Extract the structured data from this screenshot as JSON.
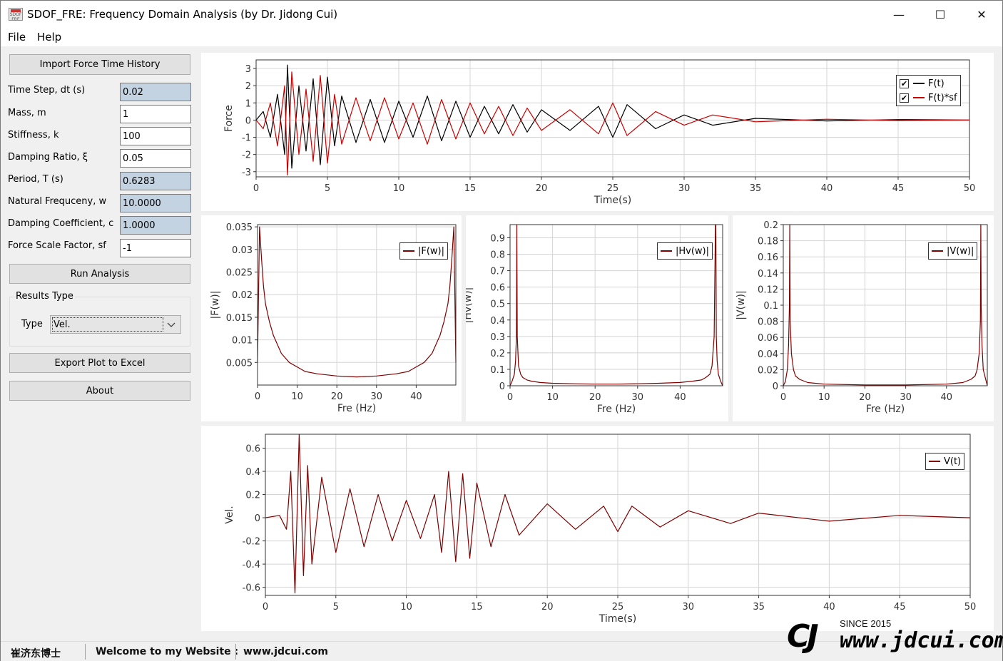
{
  "window": {
    "title": "SDOF_FRE: Frequency Domain Analysis (by Dr. Jidong Cui)",
    "icon_text": "SDOF FRE",
    "controls": {
      "minimize": "—",
      "maximize": "☐",
      "close": "✕"
    }
  },
  "menu": {
    "file": "File",
    "help": "Help"
  },
  "sidebar": {
    "import_button": "Import Force Time History",
    "fields": [
      {
        "label": "Time Step, dt (s)",
        "value": "0.02",
        "readonly": true
      },
      {
        "label": "Mass, m",
        "value": "1",
        "readonly": false
      },
      {
        "label": "Stiffness, k",
        "value": "100",
        "readonly": false
      },
      {
        "label": "Damping Ratio, ξ",
        "value": "0.05",
        "readonly": false
      },
      {
        "label": "Period, T (s)",
        "value": "0.6283",
        "readonly": true
      },
      {
        "label": "Natural Frequceny, w",
        "value": "10.0000",
        "readonly": true
      },
      {
        "label": "Damping Coefficient, c",
        "value": "1.0000",
        "readonly": true
      },
      {
        "label": "Force Scale Factor, sf",
        "value": "-1",
        "readonly": false
      }
    ],
    "run_button": "Run Analysis",
    "results_group_title": "Results Type",
    "type_label": "Type",
    "type_value": "Vel.",
    "export_button": "Export Plot to Excel",
    "about_button": "About"
  },
  "colors": {
    "series_dark": "#000000",
    "series_red": "#cc0000",
    "spectrum": "#800000",
    "panel_bg": "#ffffff",
    "readonly_field": "#c4d3e2"
  },
  "chart_data": [
    {
      "id": "force",
      "type": "line",
      "xlabel": "Time(s)",
      "ylabel": "Force",
      "xlim": [
        0,
        50
      ],
      "ylim": [
        -3.3,
        3.5
      ],
      "xticks": [
        0,
        5,
        10,
        15,
        20,
        25,
        30,
        35,
        40,
        45,
        50
      ],
      "yticks": [
        -3,
        -2,
        -1,
        0,
        1,
        2,
        3
      ],
      "grid": true,
      "legend_position": "top-right",
      "series": [
        {
          "name": "F(t)",
          "color": "#000000",
          "checked": true,
          "x": [
            0,
            0.5,
            1,
            1.5,
            2,
            2.2,
            2.5,
            3,
            3.5,
            4,
            4.5,
            5,
            5.5,
            6,
            7,
            8,
            9,
            10,
            11,
            12,
            13,
            14,
            15,
            16,
            17,
            18,
            19,
            20,
            22,
            24,
            25,
            26,
            28,
            30,
            32,
            35,
            40,
            45,
            50
          ],
          "y": [
            0,
            0.5,
            -1.0,
            1.5,
            -2.0,
            3.2,
            -2.8,
            2.0,
            -1.8,
            2.4,
            -2.6,
            2.5,
            -1.5,
            1.4,
            -1.3,
            1.2,
            -1.3,
            1.1,
            -1.0,
            1.4,
            -1.2,
            1.1,
            -1.0,
            0.8,
            -0.8,
            0.9,
            -0.7,
            0.6,
            -0.6,
            0.8,
            -1.0,
            0.9,
            -0.5,
            0.3,
            -0.3,
            0.1,
            -0.05,
            0.03,
            0
          ]
        },
        {
          "name": "F(t)*sf",
          "color": "#cc0000",
          "checked": true,
          "x": [
            0,
            0.5,
            1,
            1.5,
            2,
            2.2,
            2.5,
            3,
            3.5,
            4,
            4.5,
            5,
            5.5,
            6,
            7,
            8,
            9,
            10,
            11,
            12,
            13,
            14,
            15,
            16,
            17,
            18,
            19,
            20,
            22,
            24,
            25,
            26,
            28,
            30,
            32,
            35,
            40,
            45,
            50
          ],
          "y": [
            0,
            -0.5,
            1.0,
            -1.5,
            2.0,
            -3.2,
            2.8,
            -2.0,
            1.8,
            -2.4,
            2.6,
            -2.5,
            1.5,
            -1.4,
            1.3,
            -1.2,
            1.3,
            -1.1,
            1.0,
            -1.4,
            1.2,
            -1.1,
            1.0,
            -0.8,
            0.8,
            -0.9,
            0.7,
            -0.6,
            0.6,
            -0.8,
            1.0,
            -0.9,
            0.5,
            -0.3,
            0.3,
            -0.1,
            0.05,
            -0.03,
            0
          ]
        }
      ]
    },
    {
      "id": "fw",
      "type": "line",
      "xlabel": "Fre (Hz)",
      "ylabel": "|F(w)|",
      "xlim": [
        0,
        50
      ],
      "ylim": [
        0,
        0.0355
      ],
      "xticks": [
        0,
        10,
        20,
        30,
        40
      ],
      "yticks": [
        0.005,
        0.01,
        0.015,
        0.02,
        0.025,
        0.03,
        0.035
      ],
      "ytick_labels": [
        "0.005",
        "0.01",
        "0.015",
        "0.02",
        "0.025",
        "0.03",
        "0.035"
      ],
      "grid": true,
      "legend_position": "top-right",
      "series": [
        {
          "name": "|F(w)|",
          "color": "#800000",
          "x": [
            0,
            0.5,
            1,
            1.5,
            2,
            3,
            4,
            5,
            6,
            8,
            10,
            12,
            15,
            20,
            25,
            30,
            35,
            38,
            40,
            42,
            44,
            45,
            46,
            47,
            48,
            48.5,
            49,
            49.5,
            50
          ],
          "y": [
            0.005,
            0.035,
            0.028,
            0.022,
            0.018,
            0.014,
            0.011,
            0.009,
            0.007,
            0.005,
            0.004,
            0.003,
            0.0025,
            0.002,
            0.0018,
            0.002,
            0.0025,
            0.003,
            0.004,
            0.005,
            0.007,
            0.009,
            0.011,
            0.014,
            0.018,
            0.022,
            0.028,
            0.035,
            0.005
          ]
        }
      ]
    },
    {
      "id": "hvw",
      "type": "line",
      "xlabel": "Fre (Hz)",
      "ylabel": "|Hv(w)|",
      "xlim": [
        0,
        50
      ],
      "ylim": [
        0,
        0.98
      ],
      "xticks": [
        0,
        10,
        20,
        30,
        40
      ],
      "yticks": [
        0,
        0.1,
        0.2,
        0.3,
        0.4,
        0.5,
        0.6,
        0.7,
        0.8,
        0.9
      ],
      "ytick_labels": [
        "0",
        "0.1",
        "0.2",
        "0.3",
        "0.4",
        "0.5",
        "0.6",
        "0.7",
        "0.8",
        "0.9"
      ],
      "grid": true,
      "legend_position": "top-right",
      "series": [
        {
          "name": "|Hv(w)|",
          "color": "#800000",
          "x": [
            0,
            0.5,
            1,
            1.3,
            1.5,
            1.59,
            1.7,
            2,
            2.5,
            3,
            4,
            5,
            7,
            10,
            15,
            20,
            25,
            30,
            35,
            40,
            43,
            45,
            46,
            47,
            47.5,
            48,
            48.3,
            48.41,
            48.5,
            48.7,
            49,
            49.5,
            50
          ],
          "y": [
            0,
            0.03,
            0.07,
            0.15,
            0.3,
            0.98,
            0.3,
            0.12,
            0.07,
            0.05,
            0.035,
            0.028,
            0.02,
            0.015,
            0.012,
            0.01,
            0.01,
            0.012,
            0.015,
            0.02,
            0.028,
            0.035,
            0.05,
            0.07,
            0.12,
            0.3,
            0.98,
            0.98,
            0.3,
            0.15,
            0.07,
            0.03,
            0
          ]
        }
      ]
    },
    {
      "id": "vw",
      "type": "line",
      "xlabel": "Fre (Hz)",
      "ylabel": "|V(w)|",
      "xlim": [
        0,
        50
      ],
      "ylim": [
        0,
        0.2
      ],
      "xticks": [
        0,
        10,
        20,
        30,
        40
      ],
      "yticks": [
        0,
        0.02,
        0.04,
        0.06,
        0.08,
        0.1,
        0.12,
        0.14,
        0.16,
        0.18,
        0.2
      ],
      "ytick_labels": [
        "0",
        "0.02",
        "0.04",
        "0.06",
        "0.08",
        "0.1",
        "0.12",
        "0.14",
        "0.16",
        "0.18",
        "0.2"
      ],
      "grid": true,
      "legend_position": "top-right",
      "series": [
        {
          "name": "|V(w)|",
          "color": "#800000",
          "x": [
            0,
            0.5,
            1,
            1.3,
            1.5,
            1.59,
            1.7,
            2,
            2.5,
            3,
            4,
            6,
            10,
            20,
            30,
            40,
            44,
            46,
            47,
            47.5,
            48,
            48.3,
            48.41,
            48.5,
            48.7,
            49,
            50
          ],
          "y": [
            0,
            0.005,
            0.02,
            0.05,
            0.1,
            0.2,
            0.08,
            0.04,
            0.02,
            0.012,
            0.008,
            0.004,
            0.002,
            0.001,
            0.001,
            0.002,
            0.004,
            0.008,
            0.012,
            0.02,
            0.04,
            0.08,
            0.2,
            0.1,
            0.05,
            0.02,
            0
          ]
        }
      ]
    },
    {
      "id": "vel",
      "type": "line",
      "xlabel": "Time(s)",
      "ylabel": "Vel.",
      "xlim": [
        0,
        50
      ],
      "ylim": [
        -0.67,
        0.72
      ],
      "xticks": [
        0,
        5,
        10,
        15,
        20,
        25,
        30,
        35,
        40,
        45,
        50
      ],
      "yticks": [
        -0.6,
        -0.4,
        -0.2,
        0,
        0.2,
        0.4,
        0.6
      ],
      "ytick_labels": [
        "-0.6",
        "-0.4",
        "-0.2",
        "0",
        "0.2",
        "0.4",
        "0.6"
      ],
      "grid": true,
      "legend_position": "top-right",
      "series": [
        {
          "name": "V(t)",
          "color": "#800000",
          "x": [
            0,
            1,
            1.5,
            1.8,
            2.1,
            2.4,
            2.7,
            3.0,
            3.3,
            4,
            5,
            6,
            7,
            8,
            9,
            10,
            11,
            12,
            12.5,
            13,
            13.5,
            14,
            14.5,
            15,
            16,
            17,
            18,
            20,
            22,
            24,
            25,
            26,
            28,
            30,
            33,
            35,
            40,
            45,
            50
          ],
          "y": [
            0,
            0.02,
            -0.1,
            0.4,
            -0.65,
            0.72,
            -0.5,
            0.45,
            -0.4,
            0.35,
            -0.3,
            0.25,
            -0.25,
            0.2,
            -0.2,
            0.15,
            -0.18,
            0.2,
            -0.3,
            0.4,
            -0.38,
            0.38,
            -0.35,
            0.3,
            -0.25,
            0.2,
            -0.15,
            0.12,
            -0.1,
            0.1,
            -0.12,
            0.1,
            -0.08,
            0.06,
            -0.05,
            0.04,
            -0.03,
            0.02,
            0
          ]
        }
      ]
    }
  ],
  "status": {
    "name": "崔济东博士",
    "welcome": "Welcome to my Website :",
    "url": "www.jdcui.com",
    "logo_since": "SINCE 2015",
    "logo_url": "www.jdcui.com",
    "logo_mark": "CJ"
  }
}
